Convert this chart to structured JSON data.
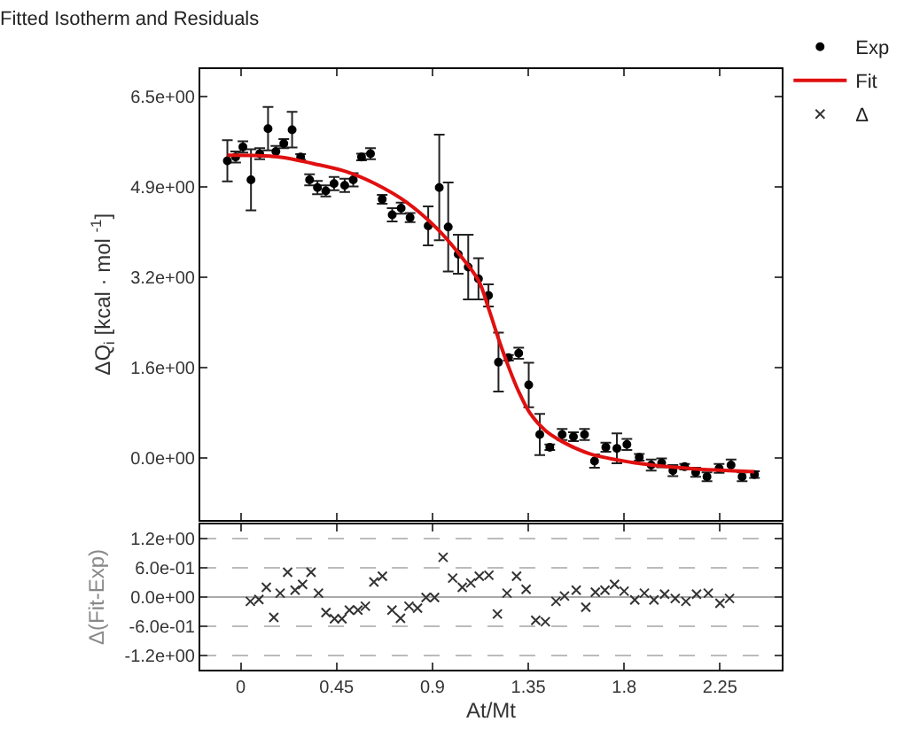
{
  "chart_data": [
    {
      "type": "scatter",
      "title": "Fitted Isotherm and Residuals",
      "ylabel": "ΔQ$_{i}$ [kcal · mol $^{-1}$]",
      "xlim": [
        -0.19,
        2.54
      ],
      "xticks": [
        0,
        0.45,
        0.9,
        1.35,
        1.8,
        2.25
      ],
      "ylim": [
        -1.1,
        7.0
      ],
      "yticks": [
        {
          "value": 0,
          "label": "0.0e+00"
        },
        {
          "value": 1.625,
          "label": "1.6e+00"
        },
        {
          "value": 3.25,
          "label": "3.2e+00"
        },
        {
          "value": 4.875,
          "label": "4.9e+00"
        },
        {
          "value": 6.5,
          "label": "6.5e+00"
        }
      ],
      "tick_labels": "y",
      "grid": false,
      "legend": "top right",
      "series": [
        {
          "name": "Exp",
          "marker": "circle",
          "color": "#000000",
          "x": [
            -0.063,
            -0.024,
            0.01,
            0.048,
            0.089,
            0.128,
            0.165,
            0.202,
            0.241,
            0.281,
            0.323,
            0.36,
            0.399,
            0.438,
            0.488,
            0.528,
            0.567,
            0.609,
            0.664,
            0.711,
            0.753,
            0.795,
            0.88,
            0.932,
            0.974,
            1.021,
            1.068,
            1.116,
            1.163,
            1.21,
            1.257,
            1.305,
            1.352,
            1.404,
            1.451,
            1.509,
            1.562,
            1.614,
            1.661,
            1.714,
            1.766,
            1.813,
            1.871,
            1.927,
            1.976,
            2.029,
            2.084,
            2.136,
            2.189,
            2.246,
            2.302,
            2.354,
            2.412
          ],
          "values": [
            5.35,
            5.42,
            5.6,
            5.01,
            5.48,
            5.93,
            5.52,
            5.66,
            5.91,
            5.42,
            5.01,
            4.87,
            4.81,
            4.94,
            4.91,
            5.01,
            5.42,
            5.48,
            4.66,
            4.38,
            4.5,
            4.33,
            4.18,
            4.87,
            4.16,
            3.67,
            3.44,
            3.23,
            2.93,
            1.73,
            1.81,
            1.89,
            1.32,
            0.43,
            0.2,
            0.43,
            0.39,
            0.43,
            -0.05,
            0.2,
            0.18,
            0.25,
            0.02,
            -0.12,
            -0.08,
            -0.22,
            -0.15,
            -0.25,
            -0.33,
            -0.18,
            -0.12,
            -0.33,
            -0.29
          ],
          "errors": [
            0.37,
            0.1,
            0.1,
            0.55,
            0.1,
            0.39,
            0.1,
            0.08,
            0.32,
            0.05,
            0.1,
            0.12,
            0.1,
            0.12,
            0.12,
            0.12,
            0.06,
            0.1,
            0.08,
            0.12,
            0.1,
            0.08,
            0.35,
            0.95,
            0.8,
            0.35,
            0.58,
            0.37,
            0.2,
            0.53,
            0.05,
            0.1,
            0.4,
            0.37,
            0.05,
            0.1,
            0.08,
            0.1,
            0.12,
            0.08,
            0.27,
            0.1,
            0.06,
            0.1,
            0.08,
            0.1,
            0.05,
            0.08,
            0.08,
            0.08,
            0.1,
            0.08,
            0.06
          ]
        },
        {
          "name": "Fit",
          "type": "line",
          "marker": "none",
          "color": "#e01010",
          "x": [
            -0.063,
            0.18,
            0.34,
            0.5,
            0.63,
            0.78,
            0.93,
            1.02,
            1.116,
            1.163,
            1.21,
            1.257,
            1.305,
            1.36,
            1.43,
            1.51,
            1.64,
            1.85,
            2.1,
            2.41
          ],
          "values": [
            5.45,
            5.42,
            5.3,
            5.15,
            4.94,
            4.6,
            4.1,
            3.7,
            3.2,
            2.7,
            2.15,
            1.65,
            1.2,
            0.8,
            0.5,
            0.3,
            0.08,
            -0.08,
            -0.18,
            -0.24
          ]
        }
      ]
    },
    {
      "type": "scatter",
      "ylabel": "Δ(Fit-Exp)",
      "xlabel": "At/Mt",
      "xlim": [
        -0.19,
        2.54
      ],
      "xticks": [
        {
          "value": 0,
          "label": "0"
        },
        0.45,
        0.9,
        1.35,
        1.8,
        2.25
      ],
      "ylim": [
        -1.5,
        1.5
      ],
      "yticks": [
        {
          "value": -1.2,
          "label": "-1.2e+00"
        },
        {
          "value": -0.6,
          "label": "-6.0e-01"
        },
        {
          "value": 0,
          "label": "0.0e+00"
        },
        {
          "value": 0.6,
          "label": "6.0e-01"
        },
        {
          "value": 1.2,
          "label": "1.2e+00"
        }
      ],
      "grid": "y",
      "legend": "top right",
      "series": [
        {
          "name": "Δ",
          "marker": "cross",
          "color": "#333333",
          "x": [
            0.045,
            0.085,
            0.12,
            0.155,
            0.185,
            0.22,
            0.255,
            0.29,
            0.33,
            0.365,
            0.4,
            0.44,
            0.475,
            0.51,
            0.55,
            0.585,
            0.625,
            0.665,
            0.71,
            0.75,
            0.79,
            0.83,
            0.87,
            0.91,
            0.95,
            0.995,
            1.04,
            1.08,
            1.12,
            1.165,
            1.205,
            1.25,
            1.295,
            1.34,
            1.385,
            1.43,
            1.48,
            1.52,
            1.575,
            1.62,
            1.665,
            1.71,
            1.755,
            1.8,
            1.85,
            1.895,
            1.94,
            1.99,
            2.04,
            2.09,
            2.14,
            2.195,
            2.25,
            2.295
          ],
          "values": [
            -0.09,
            -0.05,
            0.2,
            -0.42,
            0.08,
            0.51,
            0.14,
            0.26,
            0.51,
            0.08,
            -0.32,
            -0.45,
            -0.45,
            -0.27,
            -0.27,
            -0.19,
            0.31,
            0.43,
            -0.27,
            -0.44,
            -0.19,
            -0.23,
            -0.01,
            -0.01,
            0.82,
            0.39,
            0.2,
            0.29,
            0.43,
            0.45,
            -0.35,
            0.08,
            0.43,
            0.16,
            -0.48,
            -0.51,
            -0.09,
            0.02,
            0.14,
            -0.21,
            0.1,
            0.14,
            0.26,
            0.12,
            -0.06,
            0.08,
            -0.06,
            0.06,
            -0.03,
            -0.09,
            0.06,
            0.08,
            -0.13,
            -0.03
          ]
        }
      ]
    }
  ]
}
